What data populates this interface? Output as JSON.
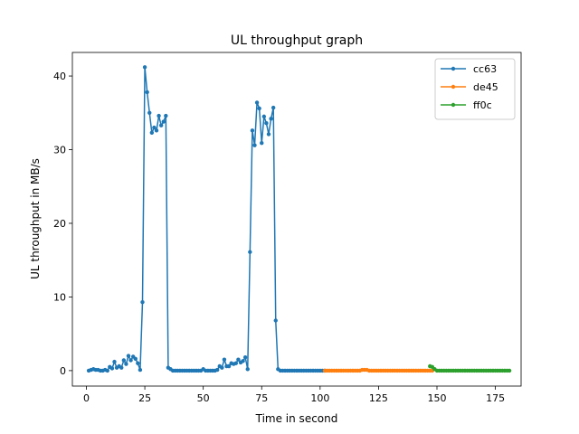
{
  "chart_data": {
    "type": "line",
    "title": "UL throughput graph",
    "xlabel": "Time in second",
    "ylabel": "UL throughput in MB/s",
    "xlim": [
      -6,
      186
    ],
    "ylim": [
      -2.1,
      43.2
    ],
    "x_ticks": [
      0,
      25,
      50,
      75,
      100,
      125,
      150,
      175
    ],
    "y_ticks": [
      0,
      10,
      20,
      30,
      40
    ],
    "grid": false,
    "legend_position": "top-right",
    "marker": "circle",
    "series": [
      {
        "name": "cc63",
        "color": "#1f77b4",
        "x": [
          1,
          2,
          3,
          4,
          5,
          6,
          7,
          8,
          9,
          10,
          11,
          12,
          13,
          14,
          15,
          16,
          17,
          18,
          19,
          20,
          21,
          22,
          23,
          24,
          25,
          26,
          27,
          28,
          29,
          30,
          31,
          32,
          33,
          34,
          35,
          36,
          37,
          38,
          39,
          40,
          41,
          42,
          43,
          44,
          45,
          46,
          47,
          48,
          49,
          50,
          51,
          52,
          53,
          54,
          55,
          56,
          57,
          58,
          59,
          60,
          61,
          62,
          63,
          64,
          65,
          66,
          67,
          68,
          69,
          70,
          71,
          72,
          73,
          74,
          75,
          76,
          77,
          78,
          79,
          80,
          81,
          82,
          83,
          84,
          85,
          86,
          87,
          88,
          89,
          90,
          91,
          92,
          93,
          94,
          95,
          96,
          97,
          98,
          99,
          100,
          101,
          102
        ],
        "y": [
          0,
          0.1,
          0.2,
          0.1,
          0.1,
          0,
          0,
          0.1,
          0,
          0.5,
          0.3,
          1.2,
          0.4,
          0.6,
          0.4,
          1.4,
          0.9,
          2,
          1.4,
          1.9,
          1.6,
          1,
          0.1,
          9.3,
          41.2,
          37.8,
          35,
          32.3,
          33,
          32.6,
          34.6,
          33.3,
          33.8,
          34.6,
          0.4,
          0.2,
          0,
          0,
          0,
          0,
          0,
          0,
          0,
          0,
          0,
          0,
          0,
          0,
          0,
          0.2,
          0,
          0,
          0,
          0,
          0,
          0.1,
          0.6,
          0.4,
          1.5,
          0.6,
          0.6,
          1,
          0.9,
          1,
          1.5,
          1.1,
          1.3,
          1.8,
          0.2,
          16.1,
          32.6,
          30.6,
          36.4,
          35.6,
          30.9,
          34.5,
          33.6,
          32.1,
          34.2,
          35.7,
          6.8,
          0.2,
          0,
          0,
          0,
          0,
          0,
          0,
          0,
          0,
          0,
          0,
          0,
          0,
          0,
          0,
          0,
          0,
          0,
          0,
          0,
          0
        ]
      },
      {
        "name": "de45",
        "color": "#ff7f0e",
        "x": [
          102,
          103,
          104,
          105,
          106,
          107,
          108,
          109,
          110,
          111,
          112,
          113,
          114,
          115,
          116,
          117,
          118,
          119,
          120,
          121,
          122,
          123,
          124,
          125,
          126,
          127,
          128,
          129,
          130,
          131,
          132,
          133,
          134,
          135,
          136,
          137,
          138,
          139,
          140,
          141,
          142,
          143,
          144,
          145,
          146,
          147,
          148
        ],
        "y": [
          0,
          0,
          0,
          0,
          0,
          0,
          0,
          0,
          0,
          0,
          0,
          0,
          0,
          0,
          0,
          0,
          0.1,
          0.1,
          0.1,
          0,
          0,
          0,
          0,
          0,
          0,
          0,
          0,
          0,
          0,
          0,
          0,
          0,
          0,
          0,
          0,
          0,
          0,
          0,
          0,
          0,
          0,
          0,
          0,
          0,
          0,
          0,
          0
        ]
      },
      {
        "name": "ff0c",
        "color": "#2ca02c",
        "x": [
          147,
          148,
          149,
          150,
          151,
          152,
          153,
          154,
          155,
          156,
          157,
          158,
          159,
          160,
          161,
          162,
          163,
          164,
          165,
          166,
          167,
          168,
          169,
          170,
          171,
          172,
          173,
          174,
          175,
          176,
          177,
          178,
          179,
          180,
          181
        ],
        "y": [
          0.6,
          0.5,
          0.2,
          0,
          0,
          0,
          0,
          0,
          0,
          0,
          0,
          0,
          0,
          0,
          0,
          0,
          0,
          0,
          0,
          0,
          0,
          0,
          0,
          0,
          0,
          0,
          0,
          0,
          0,
          0,
          0,
          0,
          0,
          0,
          0
        ]
      }
    ]
  }
}
